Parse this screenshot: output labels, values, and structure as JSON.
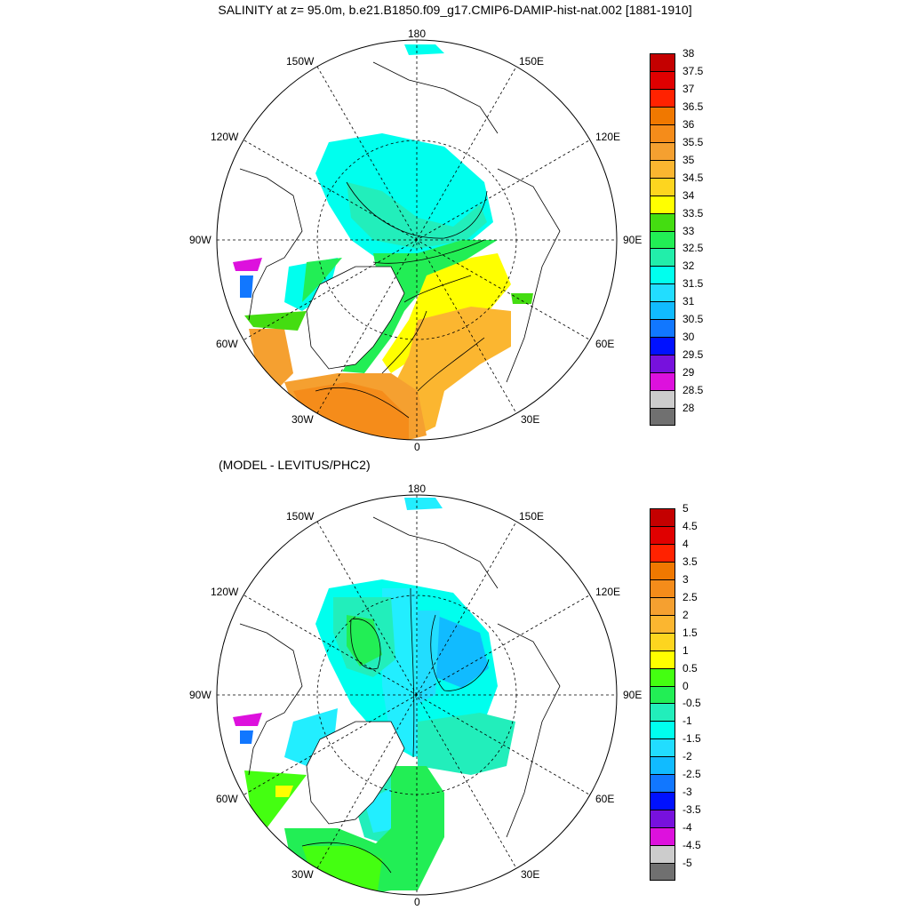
{
  "title": "SALINITY at z=  95.0m, b.e21.B1850.f09_g17.CMIP6-DAMIP-hist-nat.002 [1881-1910]",
  "subtitle": "(MODEL - LEVITUS/PHC2)",
  "longitude_labels": {
    "top": "180",
    "upper_left": "150W",
    "upper_right": "150E",
    "mid_left_up": "120W",
    "mid_right_up": "120E",
    "left": "90W",
    "right": "90E",
    "lower_left": "60W",
    "lower_right": "60E",
    "bottom_left": "30W",
    "bottom_right": "30E",
    "bottom": "0"
  },
  "colorbar_top": {
    "labels": [
      "38",
      "37.5",
      "37",
      "36.5",
      "36",
      "35.5",
      "35",
      "34.5",
      "34",
      "33.5",
      "33",
      "32.5",
      "32",
      "31.5",
      "31",
      "30.5",
      "30",
      "29.5",
      "29",
      "28.5",
      "28"
    ],
    "colors": [
      "#c40000",
      "#e00000",
      "#ff2200",
      "#f07800",
      "#f58c1a",
      "#f5a030",
      "#fbb630",
      "#fdd51f",
      "#ffff00",
      "#44dd11",
      "#22ee55",
      "#22eeaa",
      "#00ffee",
      "#22ddff",
      "#11bbff",
      "#1177ff",
      "#0011ff",
      "#7711dd",
      "#dd11dd",
      "#cccccc",
      "#707070"
    ]
  },
  "colorbar_bottom": {
    "labels": [
      "5",
      "4.5",
      "4",
      "3.5",
      "3",
      "2.5",
      "2",
      "1.5",
      "1",
      "0.5",
      "0",
      "-0.5",
      "-1",
      "-1.5",
      "-2",
      "-2.5",
      "-3",
      "-3.5",
      "-4",
      "-4.5",
      "-5"
    ],
    "colors": [
      "#c40000",
      "#e00000",
      "#ff2200",
      "#f07800",
      "#f58c1a",
      "#f5a030",
      "#fbb630",
      "#fdd51f",
      "#ffff00",
      "#44ff11",
      "#22ee55",
      "#22eebb",
      "#00ffee",
      "#22ddff",
      "#11bbff",
      "#1177ff",
      "#0011ff",
      "#7711dd",
      "#dd11dd",
      "#cccccc",
      "#707070"
    ]
  },
  "colors": {
    "ocean_cyan": "#00ffee",
    "ocean_lightcyan": "#22eeff",
    "ocean_teal": "#22eebb",
    "ocean_green": "#22ee55",
    "ocean_lime": "#44dd11",
    "ocean_yellow": "#ffff00",
    "ocean_lightorange": "#fbb630",
    "ocean_orange": "#f5a030",
    "ocean_darkorange": "#f58c1a",
    "ocean_blue": "#11bbff",
    "ocean_magenta": "#dd11dd",
    "ocean_royal": "#1177ff"
  }
}
